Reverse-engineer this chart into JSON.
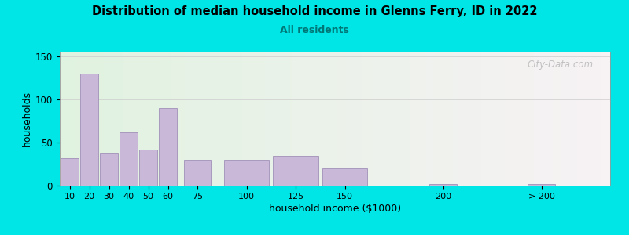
{
  "title": "Distribution of median household income in Glenns Ferry, ID in 2022",
  "subtitle": "All residents",
  "xlabel": "household income ($1000)",
  "ylabel": "households",
  "bar_color": "#c9b8d8",
  "bar_edgecolor": "#a090b8",
  "background_outer": "#00e5e5",
  "watermark": "City-Data.com",
  "ylim": [
    0,
    155
  ],
  "yticks": [
    0,
    50,
    100,
    150
  ],
  "xlim": [
    5,
    285
  ],
  "xtick_positions": [
    10,
    20,
    30,
    40,
    50,
    60,
    75,
    100,
    125,
    150,
    200,
    250
  ],
  "xtick_labels": [
    "10",
    "20",
    "30",
    "40",
    "50",
    "60",
    "75",
    "100",
    "125",
    "150",
    "200",
    "> 200"
  ],
  "bar_centers": [
    10,
    20,
    30,
    40,
    50,
    60,
    75,
    100,
    125,
    150,
    200,
    250
  ],
  "bar_widths": [
    10,
    10,
    10,
    10,
    10,
    10,
    15,
    25,
    25,
    25,
    15,
    15
  ],
  "bar_heights": [
    32,
    130,
    38,
    62,
    42,
    90,
    30,
    30,
    34,
    20,
    2,
    2
  ]
}
